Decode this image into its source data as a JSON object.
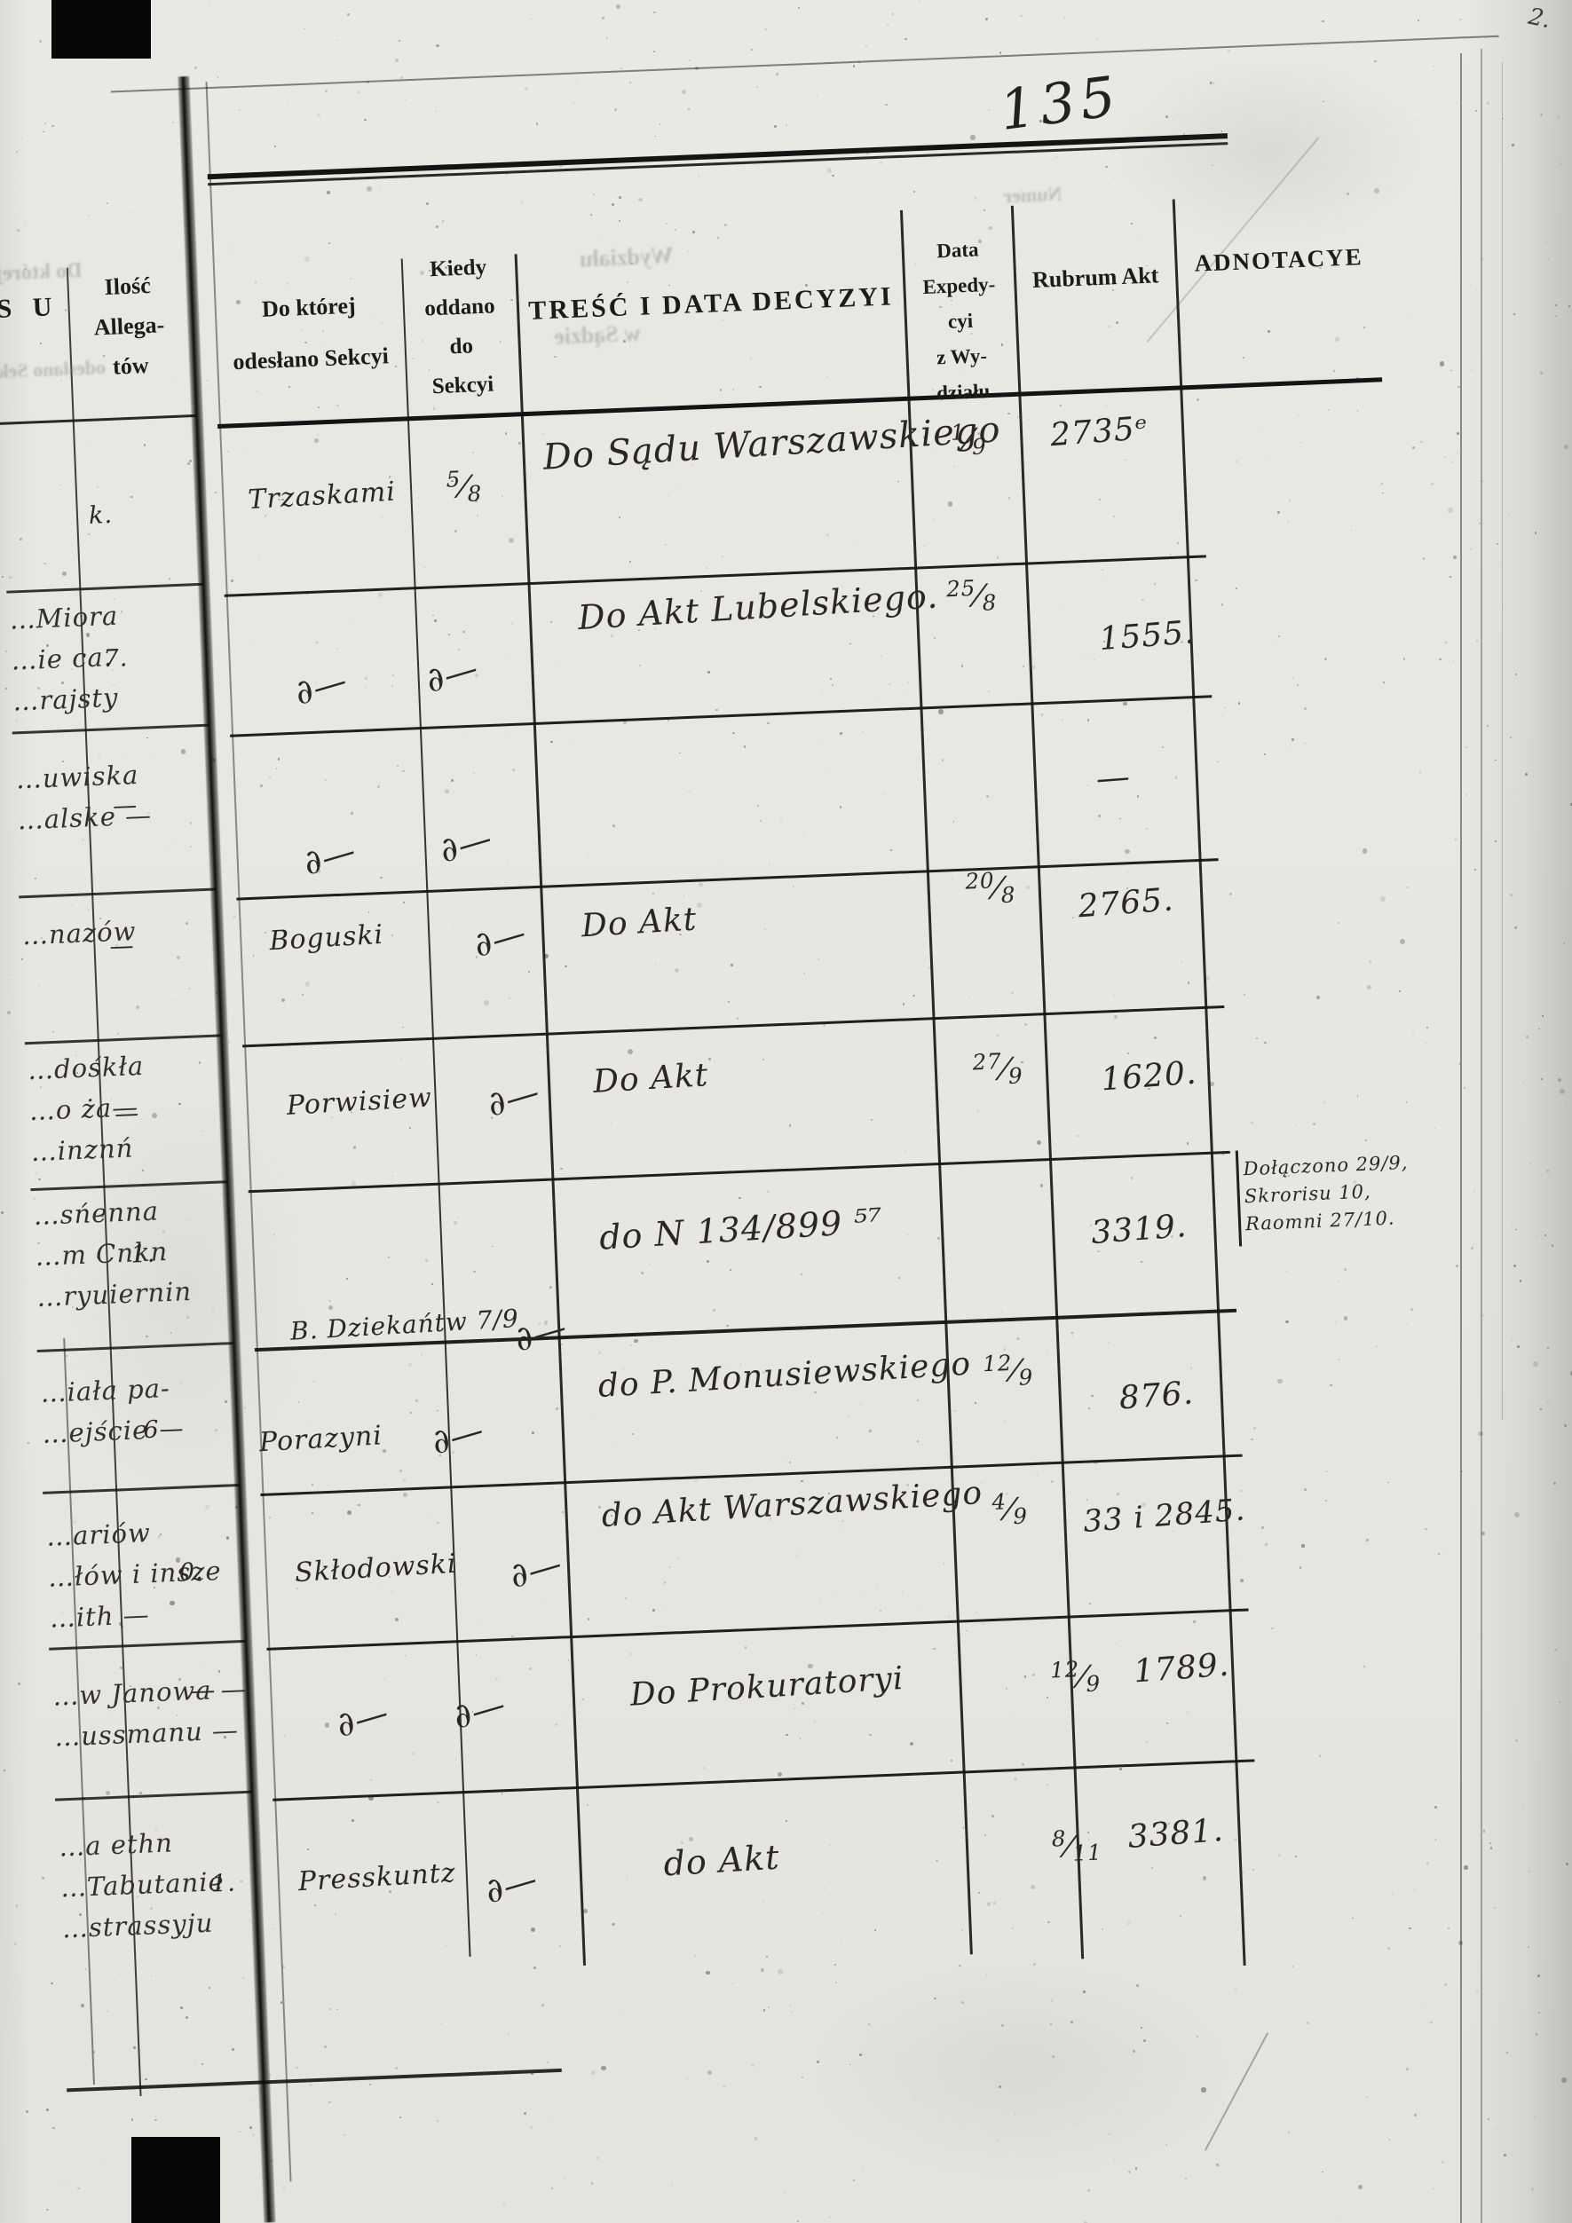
{
  "document": {
    "type": "scanned archival register page",
    "language": "Polish",
    "folio_number": "135",
    "corner_mark": "2.",
    "ink_color": "#1c1c1c",
    "paper_color": "#e9e8e3"
  },
  "left_page_strip": {
    "header_fragment": "S U",
    "ilosc_header": "Ilość\nAllega-\ntów"
  },
  "table": {
    "ditto_glyph": "∂—",
    "columns": [
      {
        "key": "sekcya",
        "label": "Do której\nodesłano Sekcyi"
      },
      {
        "key": "kiedy",
        "label": "Kiedy\noddano\ndo\nSekcyi"
      },
      {
        "key": "tresc",
        "label": "TREŚĆ I DATA DECYZYI"
      },
      {
        "key": "data_exp",
        "label": "Data\nExpedy-\ncyi\nz Wy-\ndziału"
      },
      {
        "key": "rubrum",
        "label": "Rubrum Akt"
      },
      {
        "key": "adnotacye",
        "label": "ADNOTACYE"
      }
    ],
    "rows": [
      {
        "fragments": [],
        "ilosc": "k.",
        "sekcya": "Trzaskami",
        "kiedy": "5/8",
        "tresc": "Do Sądu Warszawskiego",
        "data_exp": "1/9",
        "rubrum": "2735ᵉ",
        "adnotacye": ""
      },
      {
        "fragments": [
          "…Miora",
          "…ie ca.",
          "…rajsty"
        ],
        "ilosc": "7.",
        "sekcya": "ditto",
        "kiedy": "ditto",
        "tresc": "Do Akt Lubelskiego.",
        "data_exp": "25/8",
        "rubrum": "1555.",
        "adnotacye": ""
      },
      {
        "fragments": [
          "…uwiska",
          "…alske —"
        ],
        "ilosc": "—",
        "sekcya": "ditto",
        "kiedy": "ditto",
        "tresc": "",
        "data_exp": "",
        "rubrum": "—",
        "adnotacye": ""
      },
      {
        "fragments": [
          "…nazów"
        ],
        "ilosc": "—",
        "sekcya": "Boguski",
        "kiedy": "ditto",
        "tresc": "Do Akt",
        "data_exp": "20/8",
        "rubrum": "2765.",
        "adnotacye": ""
      },
      {
        "fragments": [
          "…dośkła",
          "…o ża—",
          "…inznń"
        ],
        "ilosc": "—",
        "sekcya": "Porwisiew",
        "kiedy": "ditto",
        "tresc": "Do Akt",
        "data_exp": "27/9",
        "rubrum": "1620.",
        "adnotacye": ""
      },
      {
        "fragments": [
          "…sńenna",
          "…m Cnkn",
          "…ryuiernin"
        ],
        "ilosc": "1.",
        "sekcya": "B. Dziekańtw 7/9",
        "kiedy": "ditto",
        "tresc": "do N 134/899 ⁵⁷",
        "data_exp": "",
        "rubrum": "3319.",
        "adnotacye": "Dołączono 29/9,\nSkrorisu 10,\nRaomni 27/10."
      },
      {
        "fragments": [
          "…iała pa-",
          "…ejście"
        ],
        "ilosc": "6—",
        "sekcya": "Porazyni",
        "kiedy": "ditto",
        "tresc": "do P. Monusiewskiego",
        "data_exp": "12/9",
        "rubrum": "876.",
        "adnotacye": ""
      },
      {
        "fragments": [
          "…ariów",
          "…łów i insze",
          "…ith —"
        ],
        "ilosc": "0.",
        "sekcya": "Skłodowski",
        "kiedy": "ditto",
        "tresc": "do Akt Warszawskiego",
        "data_exp": "4/9",
        "rubrum": "33 i 2845.",
        "adnotacye": ""
      },
      {
        "fragments": [
          "…w Janowa —",
          "…ussmanu —"
        ],
        "ilosc": "—",
        "sekcya": "ditto",
        "kiedy": "ditto",
        "tresc": "Do Prokuratoryi",
        "data_exp": "12/9",
        "rubrum": "1789.",
        "adnotacye": ""
      },
      {
        "fragments": [
          "…a ethn",
          "…Tabutanie",
          "…strassyju"
        ],
        "ilosc": "1.",
        "sekcya": "Presskuntz",
        "kiedy": "ditto",
        "tresc": "do Akt",
        "data_exp": "8/11",
        "rubrum": "3381.",
        "adnotacye": ""
      }
    ]
  },
  "bleedthrough": [
    "Do której",
    "odesłano Sek",
    "Wydziału",
    "w Sądzie",
    "Numer"
  ]
}
